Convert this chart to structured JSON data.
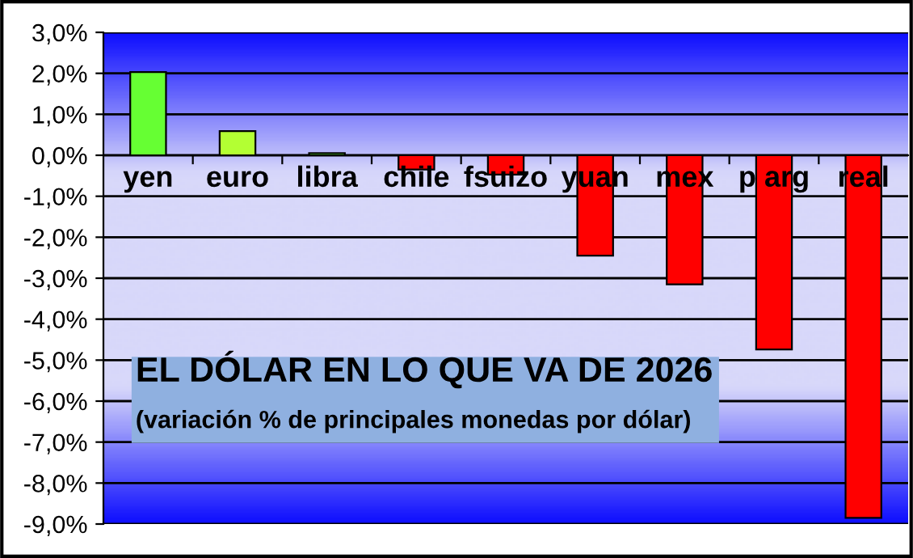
{
  "chart_data": {
    "type": "bar",
    "title": "EL DÓLAR EN LO QUE VA DE 2026",
    "subtitle": "(variación % de principales monedas por dólar)",
    "categories": [
      "yen",
      "euro",
      "libra",
      "chile",
      "fsuizo",
      "yuan",
      "mex",
      "p arg",
      "real"
    ],
    "values": [
      2.03,
      0.59,
      0.05,
      -0.35,
      -0.47,
      -2.45,
      -3.15,
      -4.74,
      -8.85
    ],
    "colors": [
      "#66ff33",
      "#b3ff33",
      "#66ff33",
      "#ff0000",
      "#ff0000",
      "#ff0000",
      "#ff0000",
      "#ff0000",
      "#ff0000"
    ],
    "ylim": [
      -9,
      3
    ],
    "yticks": [
      {
        "value": 3,
        "label": "3,0%"
      },
      {
        "value": 2,
        "label": "2,0%"
      },
      {
        "value": 1,
        "label": "1,0%"
      },
      {
        "value": 0,
        "label": "0,0%"
      },
      {
        "value": -1,
        "label": "-1,0%"
      },
      {
        "value": -2,
        "label": "-2,0%"
      },
      {
        "value": -3,
        "label": "-3,0%"
      },
      {
        "value": -4,
        "label": "-4,0%"
      },
      {
        "value": -5,
        "label": "-5,0%"
      },
      {
        "value": -6,
        "label": "-6,0%"
      },
      {
        "value": -7,
        "label": "-7,0%"
      },
      {
        "value": -8,
        "label": "-8,0%"
      },
      {
        "value": -9,
        "label": "-9,0%"
      }
    ],
    "grid": "y",
    "legend": false
  }
}
